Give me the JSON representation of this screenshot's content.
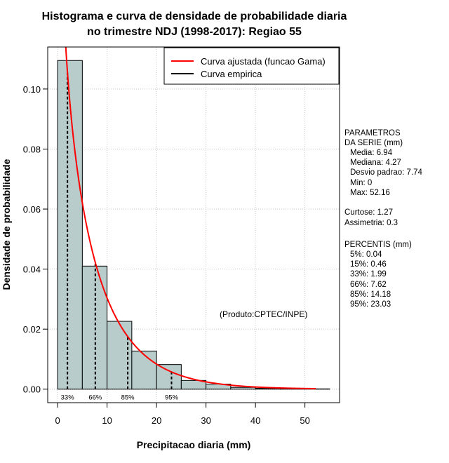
{
  "chart_data": {
    "type": "histogram",
    "title_lines": [
      "Histograma e curva de densidade de probabilidade diaria",
      "no trimestre NDJ (1998-2017): Regiao 55"
    ],
    "xlabel": "Precipitacao diaria (mm)",
    "ylabel": "Densidade de probabilidade",
    "xlim": [
      -2,
      57
    ],
    "ylim": [
      -0.0045,
      0.114
    ],
    "xticks": [
      0,
      10,
      20,
      30,
      40,
      50
    ],
    "xtick_labels": [
      "0",
      "10",
      "20",
      "30",
      "40",
      "50"
    ],
    "yticks": [
      0,
      0.02,
      0.04,
      0.06,
      0.08,
      0.1
    ],
    "ytick_labels": [
      "0.00",
      "0.02",
      "0.04",
      "0.06",
      "0.08",
      "0.10"
    ],
    "grid": true,
    "bin_edges": [
      0,
      5,
      10,
      15,
      20,
      25,
      30,
      35,
      40,
      45,
      50,
      55
    ],
    "densities": [
      0.1095,
      0.041,
      0.0226,
      0.0127,
      0.0082,
      0.0029,
      0.0017,
      0.0006,
      0.0003,
      0.0002,
      0.0001
    ],
    "bar_color": "#b8cccc",
    "gamma_curve": {
      "name": "Curva ajustada (funcao Gama)",
      "color": "#ff0000",
      "shape": 0.8,
      "scale": 8.68,
      "x_range": [
        0.3,
        52.2
      ]
    },
    "empirical_curve": {
      "name": "Curva empirica",
      "color": "#000000"
    },
    "percentile_markers": [
      {
        "label": "33%",
        "x": 1.99,
        "show_label": true
      },
      {
        "label": "66%",
        "x": 7.62,
        "show_label": true
      },
      {
        "label": "85%",
        "x": 14.18,
        "show_label": true
      },
      {
        "label": "95%",
        "x": 23.03,
        "show_label": true
      }
    ],
    "legend_position": "top-right",
    "annotation": "(Produto:CPTEC/INPE)"
  },
  "stats_panel": {
    "header": [
      "PARAMETROS",
      "DA SERIE (mm)"
    ],
    "params": [
      "Media: 6.94",
      "Mediana: 4.27",
      "Desvio padrao: 7.74",
      "Min: 0",
      "Max: 52.16"
    ],
    "shape": [
      "Curtose: 1.27",
      "Assimetria: 0.3"
    ],
    "percentis_header": "PERCENTIS (mm)",
    "percentis": [
      "5%: 0.04",
      "15%: 0.46",
      "33%: 1.99",
      "66%: 7.62",
      "85%: 14.18",
      "95%: 23.03"
    ]
  }
}
